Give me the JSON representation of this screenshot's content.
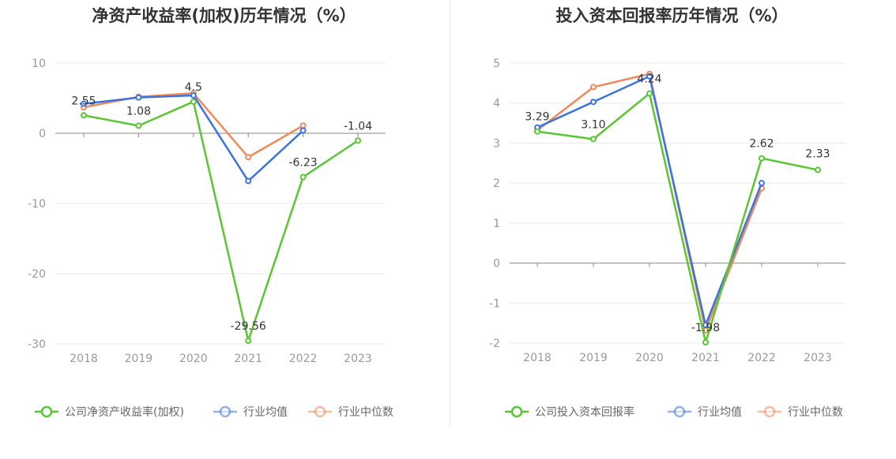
{
  "colors": {
    "company": "#5ac634",
    "avg": "#3b74de",
    "median": "#f0885a",
    "grid": "#e6e9f0",
    "axis": "#888888"
  },
  "chart_data": [
    {
      "type": "line",
      "title": "净资产收益率(加权)历年情况（%）",
      "categories": [
        "2018",
        "2019",
        "2020",
        "2021",
        "2022",
        "2023"
      ],
      "yticks": [
        10,
        0,
        -10,
        -20,
        -30
      ],
      "ylim": [
        -30,
        10
      ],
      "grid": true,
      "legend_position": "bottom",
      "series": [
        {
          "key": "company",
          "name": "公司净资产收益率(加权)",
          "values": [
            2.55,
            1.08,
            4.5,
            -29.56,
            -6.23,
            -1.04
          ],
          "labels": [
            "2.55",
            "1.08",
            "4.5",
            "-29.56",
            "-6.23",
            "-1.04"
          ]
        },
        {
          "key": "avg",
          "name": "行业均值",
          "values": [
            4.2,
            5.1,
            5.4,
            -6.8,
            0.4,
            null
          ]
        },
        {
          "key": "median",
          "name": "行业中位数",
          "values": [
            3.7,
            5.2,
            5.7,
            -3.4,
            1.1,
            null
          ]
        }
      ]
    },
    {
      "type": "line",
      "title": "投入资本回报率历年情况（%）",
      "categories": [
        "2018",
        "2019",
        "2020",
        "2021",
        "2022",
        "2023"
      ],
      "yticks": [
        5,
        4,
        3,
        2,
        1,
        0,
        -1,
        -2
      ],
      "ylim": [
        -2,
        5
      ],
      "grid": true,
      "legend_position": "bottom",
      "series": [
        {
          "key": "company",
          "name": "公司投入资本回报率",
          "values": [
            3.29,
            3.1,
            4.24,
            -1.98,
            2.62,
            2.33
          ],
          "labels": [
            "3.29",
            "3.10",
            "4.24",
            "-1.98",
            "2.62",
            "2.33"
          ]
        },
        {
          "key": "avg",
          "name": "行业均值",
          "values": [
            3.39,
            4.03,
            4.67,
            -1.55,
            2.0,
            null
          ]
        },
        {
          "key": "median",
          "name": "行业中位数",
          "values": [
            3.32,
            4.4,
            4.73,
            -1.68,
            1.87,
            null
          ]
        }
      ]
    }
  ]
}
